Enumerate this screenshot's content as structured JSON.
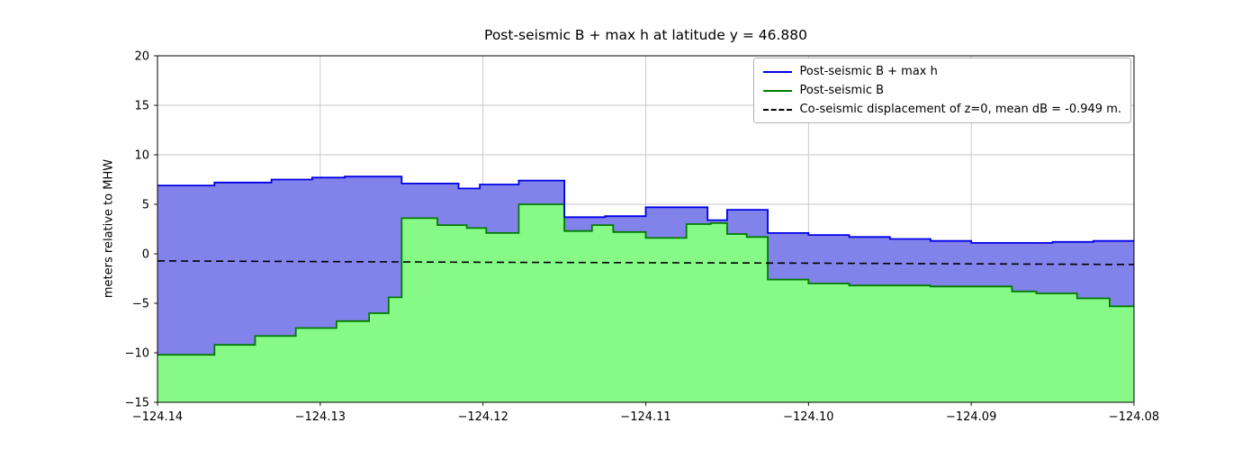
{
  "chart_data": {
    "type": "area",
    "title": "Post-seismic B + max h at latitude y = 46.880",
    "xlabel": "",
    "ylabel": "meters relative to MHW",
    "xlim": [
      -124.14,
      -124.08
    ],
    "ylim": [
      -15,
      20
    ],
    "grid": true,
    "axis_color": "#000000",
    "grid_color": "#c6c6c6",
    "xticks": [
      -124.14,
      -124.13,
      -124.12,
      -124.11,
      -124.1,
      -124.09,
      -124.08
    ],
    "xtick_labels": [
      "−124.14",
      "−124.13",
      "−124.12",
      "−124.11",
      "−124.10",
      "−124.09",
      "−124.08"
    ],
    "yticks": [
      -15,
      -10,
      -5,
      0,
      5,
      10,
      15,
      20
    ],
    "ytick_labels": [
      "−15",
      "−10",
      "−5",
      "0",
      "5",
      "10",
      "15",
      "20"
    ],
    "legend": {
      "position": "upper right",
      "entries": [
        {
          "label": "Post-seismic B + max h",
          "color": "#0000e6",
          "style": "solid"
        },
        {
          "label": "Post-seismic B",
          "color": "#007c00",
          "style": "solid"
        },
        {
          "label": "Co-seismic displacement of z=0, mean dB = -0.949 m.",
          "color": "#000000",
          "style": "dashed"
        }
      ]
    },
    "series": [
      {
        "name": "Post-seismic B + max h",
        "mode": "step-area",
        "line_color": "#0000e6",
        "fill_color": "#8282eb",
        "x_edges": [
          -124.14,
          -124.1365,
          -124.133,
          -124.1305,
          -124.1285,
          -124.125,
          -124.1215,
          -124.1202,
          -124.1178,
          -124.115,
          -124.1125,
          -124.11,
          -124.1062,
          -124.105,
          -124.1025,
          -124.1,
          -124.0975,
          -124.095,
          -124.0925,
          -124.09,
          -124.085,
          -124.0825,
          -124.08
        ],
        "values": [
          6.9,
          7.2,
          7.5,
          7.7,
          7.8,
          7.1,
          6.6,
          7.0,
          7.4,
          3.7,
          3.8,
          4.7,
          3.4,
          4.45,
          2.1,
          1.9,
          1.7,
          1.5,
          1.3,
          1.1,
          1.2,
          1.3
        ]
      },
      {
        "name": "Post-seismic B",
        "mode": "step-area",
        "line_color": "#007c00",
        "fill_color": "#86f986",
        "x_edges": [
          -124.14,
          -124.1365,
          -124.134,
          -124.1315,
          -124.129,
          -124.127,
          -124.1258,
          -124.125,
          -124.1228,
          -124.121,
          -124.1198,
          -124.1178,
          -124.115,
          -124.1133,
          -124.112,
          -124.11,
          -124.1075,
          -124.106,
          -124.105,
          -124.1038,
          -124.1025,
          -124.1,
          -124.0975,
          -124.0925,
          -124.0875,
          -124.086,
          -124.0835,
          -124.0815,
          -124.08
        ],
        "values": [
          -10.2,
          -9.2,
          -8.3,
          -7.5,
          -6.8,
          -6.0,
          -4.4,
          3.6,
          2.9,
          2.6,
          2.1,
          5.0,
          2.3,
          2.9,
          2.2,
          1.6,
          3.0,
          3.1,
          2.0,
          1.7,
          -2.6,
          -3.0,
          -3.2,
          -3.3,
          -3.8,
          -4.0,
          -4.5,
          -5.3
        ]
      },
      {
        "name": "Co-seismic displacement of z=0, mean dB = -0.949 m.",
        "mode": "dashed-line",
        "line_color": "#000000",
        "x": [
          -124.14,
          -124.12,
          -124.1,
          -124.08
        ],
        "y": [
          -0.72,
          -0.85,
          -0.95,
          -1.08
        ]
      }
    ]
  }
}
